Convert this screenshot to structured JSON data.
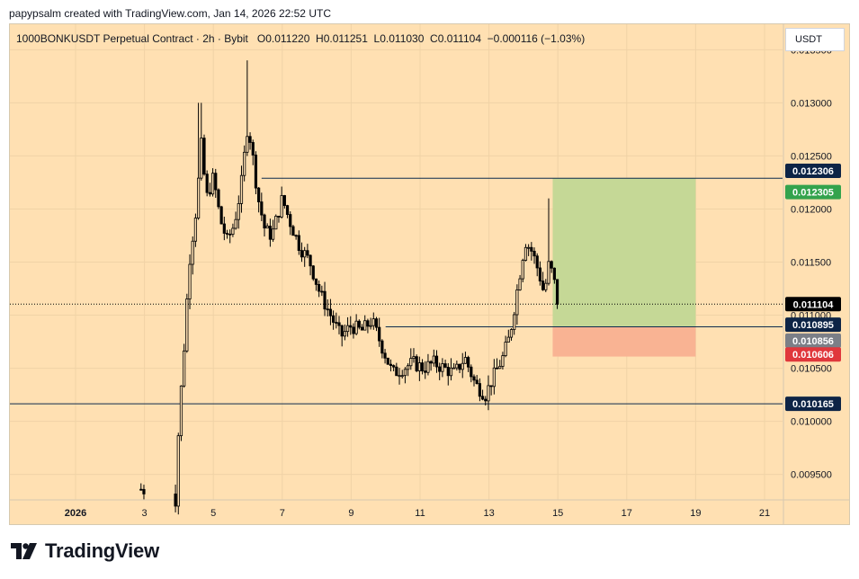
{
  "header": {
    "text": "papypsalm created with TradingView.com, Jan 14, 2026 22:52 UTC"
  },
  "legend": {
    "text": "1000BONKUSDT Perpetual Contract · 2h · Bybit   O0.011220  H0.011251  L0.011030  C0.011104  −0.000116 (−1.03%)"
  },
  "currency": {
    "label": "USDT"
  },
  "logo": {
    "text": "TradingView"
  },
  "colors": {
    "background": "#ffe0b2",
    "candle": "#000000",
    "profit_zone": "#c5d896",
    "loss_zone": "#f9b393",
    "line": "#0d2b4d",
    "tag_dark": "#0d2446",
    "tag_green": "#33a34d",
    "tag_gray": "#7b7f87",
    "tag_red": "#e0373c",
    "tag_black": "#000000"
  },
  "chart_data": {
    "type": "candlestick",
    "symbol": "1000BONKUSDT",
    "interval": "2h",
    "ylim": [
      0.00926,
      0.01374
    ],
    "y_ticks": [
      "0.009500",
      "0.010000",
      "0.010500",
      "0.011000",
      "0.011500",
      "0.012000",
      "0.012500",
      "0.013000",
      "0.013500"
    ],
    "x_ticks": [
      {
        "label": "2026",
        "day": 1
      },
      {
        "label": "3",
        "day": 3
      },
      {
        "label": "5",
        "day": 5
      },
      {
        "label": "7",
        "day": 7
      },
      {
        "label": "9",
        "day": 9
      },
      {
        "label": "11",
        "day": 11
      },
      {
        "label": "13",
        "day": 13
      },
      {
        "label": "15",
        "day": 15
      },
      {
        "label": "17",
        "day": 17
      },
      {
        "label": "19",
        "day": 19
      },
      {
        "label": "21",
        "day": 21
      }
    ],
    "horizontal_lines": [
      0.01229,
      0.01089,
      0.010165
    ],
    "last_price_line": 0.011104,
    "position": {
      "entry": 0.01089,
      "target": 0.01229,
      "stop": 0.01061,
      "start_day": 14.85,
      "end_day": 19
    },
    "price_tags": [
      {
        "label": "0.012306",
        "value": 0.01236,
        "color": "tag_dark"
      },
      {
        "label": "0.012305",
        "value": 0.01216,
        "color": "tag_green"
      },
      {
        "label": "0.011104",
        "value": 0.011104,
        "color": "tag_black"
      },
      {
        "label": "0.010895",
        "value": 0.01091,
        "color": "tag_dark"
      },
      {
        "label": "0.010856",
        "value": 0.01076,
        "color": "tag_gray"
      },
      {
        "label": "0.010606",
        "value": 0.01063,
        "color": "tag_red"
      },
      {
        "label": "0.010165",
        "value": 0.010165,
        "color": "tag_dark"
      }
    ],
    "key_points": [
      {
        "day": 2.9,
        "price": 0.00936
      },
      {
        "day": 3.9,
        "price": 0.00926
      },
      {
        "day": 4.0,
        "price": 0.01
      },
      {
        "day": 4.15,
        "price": 0.0107
      },
      {
        "day": 4.3,
        "price": 0.0115
      },
      {
        "day": 4.5,
        "price": 0.012
      },
      {
        "day": 4.65,
        "price": 0.0126
      },
      {
        "day": 4.8,
        "price": 0.0121
      },
      {
        "day": 5.0,
        "price": 0.0123
      },
      {
        "day": 5.2,
        "price": 0.0119
      },
      {
        "day": 5.4,
        "price": 0.0117
      },
      {
        "day": 5.6,
        "price": 0.01185
      },
      {
        "day": 5.8,
        "price": 0.0122
      },
      {
        "day": 6.0,
        "price": 0.0128
      },
      {
        "day": 6.1,
        "price": 0.0126
      },
      {
        "day": 6.3,
        "price": 0.0121
      },
      {
        "day": 6.5,
        "price": 0.0118
      },
      {
        "day": 6.7,
        "price": 0.01175
      },
      {
        "day": 7.0,
        "price": 0.0121
      },
      {
        "day": 7.2,
        "price": 0.0119
      },
      {
        "day": 7.5,
        "price": 0.01165
      },
      {
        "day": 7.8,
        "price": 0.0115
      },
      {
        "day": 8.1,
        "price": 0.0112
      },
      {
        "day": 8.4,
        "price": 0.011
      },
      {
        "day": 8.7,
        "price": 0.0108
      },
      {
        "day": 9.0,
        "price": 0.0109
      },
      {
        "day": 9.3,
        "price": 0.01085
      },
      {
        "day": 9.6,
        "price": 0.01095
      },
      {
        "day": 9.9,
        "price": 0.0107
      },
      {
        "day": 10.2,
        "price": 0.01045
      },
      {
        "day": 10.5,
        "price": 0.0105
      },
      {
        "day": 10.8,
        "price": 0.01055
      },
      {
        "day": 11.1,
        "price": 0.0105
      },
      {
        "day": 11.4,
        "price": 0.01055
      },
      {
        "day": 11.7,
        "price": 0.0105
      },
      {
        "day": 12.0,
        "price": 0.01045
      },
      {
        "day": 12.3,
        "price": 0.0106
      },
      {
        "day": 12.6,
        "price": 0.01035
      },
      {
        "day": 12.9,
        "price": 0.01025
      },
      {
        "day": 13.1,
        "price": 0.0104
      },
      {
        "day": 13.4,
        "price": 0.0106
      },
      {
        "day": 13.6,
        "price": 0.0108
      },
      {
        "day": 13.8,
        "price": 0.0112
      },
      {
        "day": 14.05,
        "price": 0.0117
      },
      {
        "day": 14.25,
        "price": 0.0116
      },
      {
        "day": 14.45,
        "price": 0.0114
      },
      {
        "day": 14.6,
        "price": 0.0112
      },
      {
        "day": 14.75,
        "price": 0.0115
      },
      {
        "day": 14.9,
        "price": 0.0113
      },
      {
        "day": 15.0,
        "price": 0.0111
      }
    ]
  }
}
